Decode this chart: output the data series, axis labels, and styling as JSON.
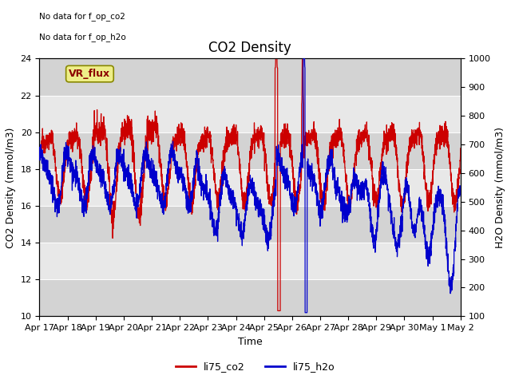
{
  "title": "CO2 Density",
  "xlabel": "Time",
  "ylabel_left": "CO2 Density (mmol/m3)",
  "ylabel_right": "H2O Density (mmol/m3)",
  "ylim_left": [
    10,
    24
  ],
  "ylim_right": [
    100,
    1000
  ],
  "yticks_left": [
    10,
    12,
    14,
    16,
    18,
    20,
    22,
    24
  ],
  "yticks_right": [
    100,
    200,
    300,
    400,
    500,
    600,
    700,
    800,
    900,
    1000
  ],
  "xtick_labels": [
    "Apr 17",
    "Apr 18",
    "Apr 19",
    "Apr 20",
    "Apr 21",
    "Apr 22",
    "Apr 23",
    "Apr 24",
    "Apr 25",
    "Apr 26",
    "Apr 27",
    "Apr 28",
    "Apr 29",
    "Apr 30",
    "May 1",
    "May 2"
  ],
  "color_co2": "#cc0000",
  "color_h2o": "#0000cc",
  "no_data_text1": "No data for f_op_co2",
  "no_data_text2": "No data for f_op_h2o",
  "vr_flux_label": "VR_flux",
  "legend_labels": [
    "li75_co2",
    "li75_h2o"
  ],
  "background_color": "#ffffff",
  "plot_bg_color": "#e8e8e8",
  "gray_band_color": "#d3d3d3",
  "title_fontsize": 12,
  "axis_fontsize": 9,
  "tick_fontsize": 8
}
